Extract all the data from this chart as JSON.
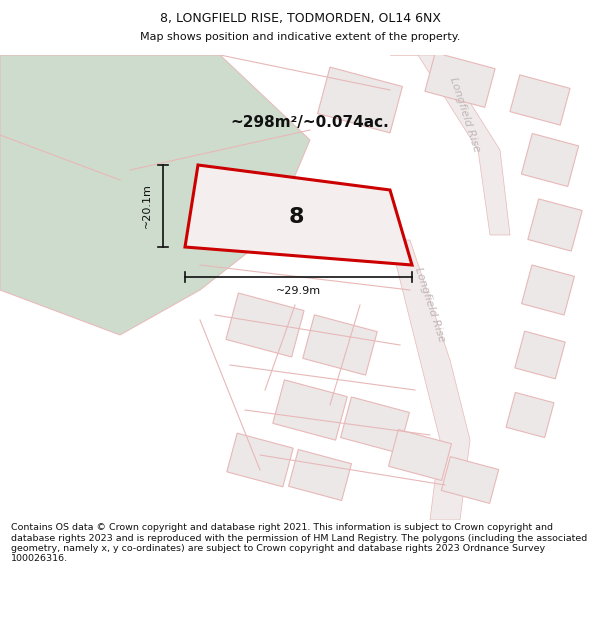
{
  "title": "8, LONGFIELD RISE, TODMORDEN, OL14 6NX",
  "subtitle": "Map shows position and indicative extent of the property.",
  "footer": "Contains OS data © Crown copyright and database right 2021. This information is subject to Crown copyright and database rights 2023 and is reproduced with the permission of HM Land Registry. The polygons (including the associated geometry, namely x, y co-ordinates) are subject to Crown copyright and database rights 2023 Ordnance Survey 100026316.",
  "area_label": "~298m²/~0.074ac.",
  "width_label": "~29.9m",
  "height_label": "~20.1m",
  "property_number": "8",
  "background_color": "#ffffff",
  "map_bg_color": "#f7f4f4",
  "green_color": "#cddccc",
  "plot_fill": "#ece8e8",
  "highlight_fill": "#f5eeee",
  "border_color": "#e8b8b8",
  "highlight_color": "#cc0000",
  "road_label_color": "#c0b8b8",
  "dim_color": "#111111",
  "title_fontsize": 9,
  "subtitle_fontsize": 8
}
